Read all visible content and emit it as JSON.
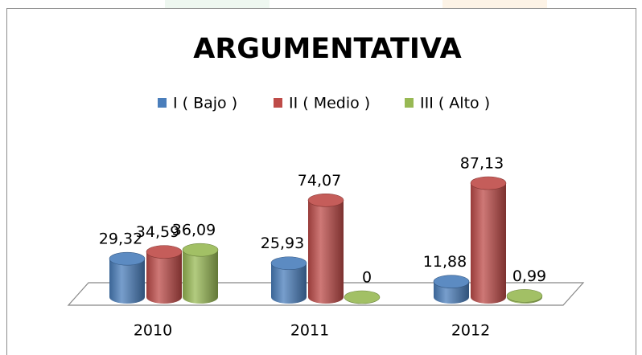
{
  "chart_data": {
    "type": "bar3d",
    "title": "ARGUMENTATIVA",
    "categories": [
      "2010",
      "2011",
      "2012"
    ],
    "series": [
      {
        "name": "I ( Bajo )",
        "color": "#4a7ebb",
        "values": [
          29.32,
          25.93,
          11.88
        ],
        "value_labels": [
          "29,32",
          "25,93",
          "11,88"
        ]
      },
      {
        "name": "II ( Medio )",
        "color": "#be4b48",
        "values": [
          34.59,
          74.07,
          87.13
        ],
        "value_labels": [
          "34,59",
          "74,07",
          "87,13"
        ]
      },
      {
        "name": "III ( Alto )",
        "color": "#98b954",
        "values": [
          36.09,
          0,
          0.99
        ],
        "value_labels": [
          "36,09",
          "0",
          "0,99"
        ]
      }
    ],
    "legend": "top"
  }
}
